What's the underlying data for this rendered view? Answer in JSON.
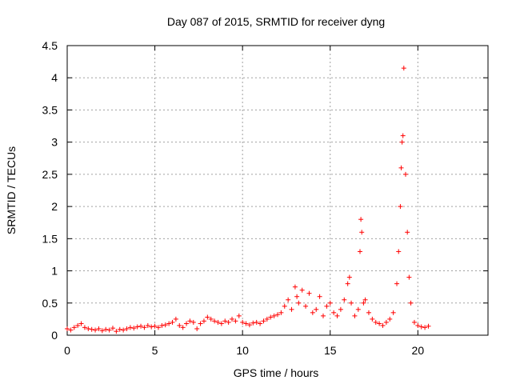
{
  "chart_data": {
    "type": "scatter",
    "title": "Day 087 of 2015, SRMTID for receiver dyng",
    "xlabel": "GPS time / hours",
    "ylabel": "SRMTID / TECUs",
    "xlim": [
      0,
      24
    ],
    "ylim": [
      0,
      4.5
    ],
    "x_ticks": [
      0,
      5,
      10,
      15,
      20
    ],
    "x_tick_labels": [
      "0",
      "5",
      "10",
      "15",
      "20"
    ],
    "y_ticks": [
      0,
      0.5,
      1,
      1.5,
      2,
      2.5,
      3,
      3.5,
      4,
      4.5
    ],
    "y_tick_labels": [
      "0",
      "0.5",
      "1",
      "1.5",
      "2",
      "2.5",
      "3",
      "3.5",
      "4",
      "4.5"
    ],
    "grid": true,
    "marker": "+",
    "color": "#ff0000",
    "series": [
      {
        "name": "SRMTID",
        "x": [
          0.0,
          0.2,
          0.4,
          0.6,
          0.8,
          1.0,
          1.2,
          1.4,
          1.6,
          1.8,
          2.0,
          2.2,
          2.4,
          2.6,
          2.8,
          3.0,
          3.2,
          3.4,
          3.6,
          3.8,
          4.0,
          4.2,
          4.4,
          4.6,
          4.8,
          5.0,
          5.2,
          5.4,
          5.6,
          5.8,
          6.0,
          6.2,
          6.4,
          6.6,
          6.8,
          7.0,
          7.2,
          7.4,
          7.6,
          7.8,
          8.0,
          8.2,
          8.4,
          8.6,
          8.8,
          9.0,
          9.2,
          9.4,
          9.6,
          9.8,
          10.0,
          10.2,
          10.4,
          10.6,
          10.8,
          11.0,
          11.2,
          11.4,
          11.6,
          11.8,
          12.0,
          12.2,
          12.4,
          12.6,
          12.8,
          13.0,
          13.1,
          13.2,
          13.4,
          13.6,
          13.8,
          14.0,
          14.2,
          14.4,
          14.6,
          14.8,
          15.0,
          15.2,
          15.4,
          15.6,
          15.8,
          16.0,
          16.1,
          16.2,
          16.4,
          16.6,
          16.7,
          16.75,
          16.8,
          16.9,
          17.0,
          17.2,
          17.4,
          17.6,
          17.8,
          18.0,
          18.2,
          18.4,
          18.6,
          18.8,
          18.9,
          19.0,
          19.05,
          19.1,
          19.15,
          19.2,
          19.3,
          19.4,
          19.5,
          19.6,
          19.8,
          20.0,
          20.2,
          20.4,
          20.6
        ],
        "y": [
          0.1,
          0.08,
          0.12,
          0.15,
          0.18,
          0.12,
          0.1,
          0.09,
          0.08,
          0.1,
          0.07,
          0.09,
          0.08,
          0.11,
          0.06,
          0.09,
          0.08,
          0.1,
          0.12,
          0.11,
          0.13,
          0.14,
          0.12,
          0.15,
          0.13,
          0.14,
          0.12,
          0.15,
          0.16,
          0.18,
          0.2,
          0.25,
          0.15,
          0.12,
          0.18,
          0.22,
          0.2,
          0.1,
          0.18,
          0.22,
          0.28,
          0.25,
          0.22,
          0.2,
          0.18,
          0.22,
          0.2,
          0.25,
          0.22,
          0.3,
          0.2,
          0.18,
          0.16,
          0.19,
          0.2,
          0.18,
          0.22,
          0.25,
          0.28,
          0.3,
          0.32,
          0.35,
          0.45,
          0.55,
          0.4,
          0.75,
          0.6,
          0.5,
          0.7,
          0.45,
          0.65,
          0.35,
          0.4,
          0.6,
          0.3,
          0.45,
          0.5,
          0.35,
          0.3,
          0.4,
          0.55,
          0.8,
          0.9,
          0.5,
          0.3,
          0.4,
          1.3,
          1.8,
          1.6,
          0.5,
          0.55,
          0.35,
          0.25,
          0.2,
          0.18,
          0.15,
          0.2,
          0.25,
          0.35,
          0.8,
          1.3,
          2.0,
          2.6,
          3.0,
          3.1,
          4.15,
          2.5,
          1.6,
          0.9,
          0.5,
          0.2,
          0.15,
          0.13,
          0.12,
          0.14
        ]
      }
    ]
  }
}
